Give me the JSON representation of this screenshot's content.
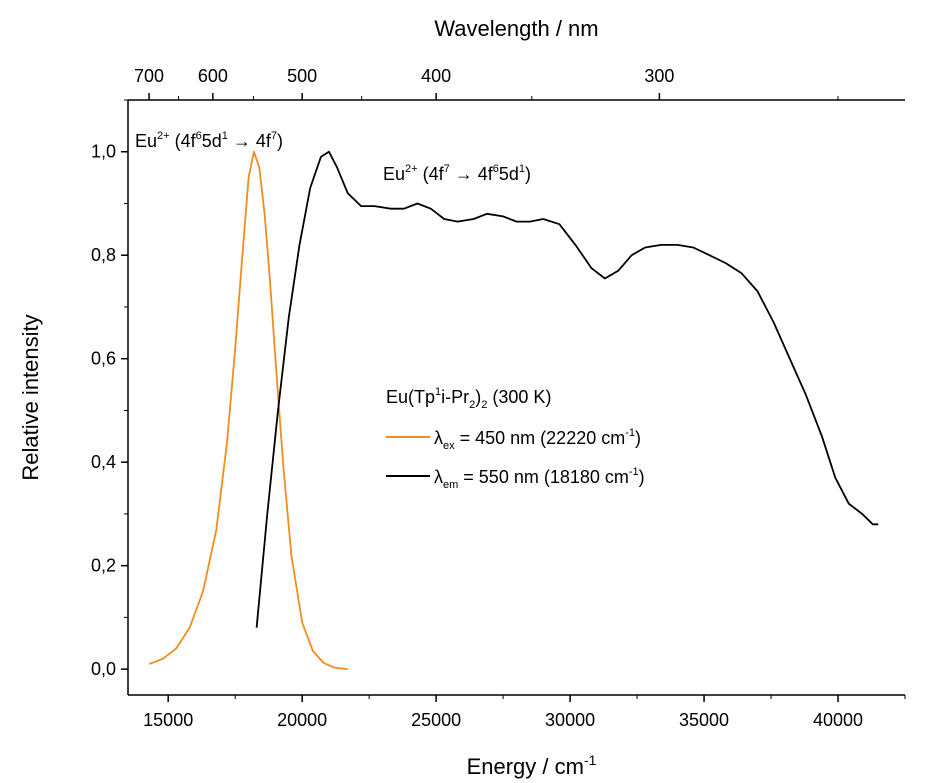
{
  "chart_data": {
    "type": "line",
    "xlabel": "Energy / cm",
    "xlabel_sup": "-1",
    "ylabel": "Relative intensity",
    "top_axis_label": "Wavelength / nm",
    "xlim": [
      13500,
      42500
    ],
    "ylim": [
      -0.05,
      1.1
    ],
    "x_ticks": [
      15000,
      20000,
      25000,
      30000,
      35000,
      40000
    ],
    "x_tick_labels": [
      "15000",
      "20000",
      "25000",
      "30000",
      "35000",
      "40000"
    ],
    "y_ticks": [
      0.0,
      0.2,
      0.4,
      0.6,
      0.8,
      1.0
    ],
    "y_tick_labels": [
      "0,0",
      "0,2",
      "0,4",
      "0,6",
      "0,8",
      "1,0"
    ],
    "top_ticks_nm": [
      700,
      600,
      500,
      400,
      300
    ],
    "top_tick_labels": [
      "700",
      "600",
      "500",
      "400",
      "300"
    ],
    "grid": false,
    "legend_position": "center-right",
    "legend_title": {
      "main": "Eu(Tp",
      "sup": "1",
      "mid": "i-Pr",
      "sub1": "2",
      "end": ")",
      "sub2": "2",
      "tail": " (300 K)"
    },
    "series": [
      {
        "name_parts": {
          "greek": "λ",
          "sub": "ex",
          "text": " = 450 nm (22220 cm",
          "sup": "-1",
          "end": ")"
        },
        "color": "#f28c1e",
        "x": [
          14300,
          14800,
          15300,
          15800,
          16300,
          16800,
          17200,
          17500,
          17800,
          18000,
          18200,
          18400,
          18600,
          18800,
          19000,
          19300,
          19600,
          20000,
          20400,
          20800,
          21200,
          21700
        ],
        "y": [
          0.01,
          0.02,
          0.04,
          0.08,
          0.15,
          0.27,
          0.44,
          0.62,
          0.82,
          0.95,
          1.0,
          0.97,
          0.88,
          0.75,
          0.6,
          0.39,
          0.22,
          0.09,
          0.035,
          0.012,
          0.003,
          0.0
        ]
      },
      {
        "name_parts": {
          "greek": "λ",
          "sub": "em",
          "text": " = 550 nm (18180 cm",
          "sup": "-1",
          "end": ")"
        },
        "color": "#000000",
        "x": [
          18300,
          18700,
          19100,
          19500,
          19900,
          20300,
          20700,
          21000,
          21300,
          21700,
          22200,
          22700,
          23300,
          23800,
          24300,
          24800,
          25300,
          25800,
          26400,
          26900,
          27500,
          28000,
          28500,
          29000,
          29600,
          30200,
          30800,
          31300,
          31800,
          32300,
          32800,
          33400,
          34000,
          34600,
          35200,
          35800,
          36400,
          37000,
          37600,
          38200,
          38800,
          39400,
          39900,
          40400,
          40900,
          41300,
          41500
        ],
        "y": [
          0.08,
          0.3,
          0.5,
          0.68,
          0.82,
          0.93,
          0.99,
          1.0,
          0.97,
          0.92,
          0.895,
          0.895,
          0.89,
          0.89,
          0.9,
          0.89,
          0.87,
          0.865,
          0.87,
          0.88,
          0.875,
          0.865,
          0.865,
          0.87,
          0.86,
          0.82,
          0.775,
          0.755,
          0.77,
          0.8,
          0.815,
          0.82,
          0.82,
          0.815,
          0.8,
          0.785,
          0.765,
          0.73,
          0.67,
          0.6,
          0.53,
          0.45,
          0.37,
          0.32,
          0.3,
          0.28,
          0.28
        ]
      }
    ],
    "annotations": [
      {
        "base": "Eu",
        "sup": "2+",
        "text1": " (4f",
        "sup2": "6",
        "text2": "5d",
        "sup3": "1",
        "arrow": " → ",
        "text3": "4f",
        "sup4": "7",
        "end": ")",
        "at_x": 14300,
        "at_y": 1.02
      },
      {
        "base": "Eu",
        "sup": "2+",
        "text1": " (4f",
        "sup2": "7",
        "arrow": " → ",
        "text2": "4f",
        "sup3": "6",
        "text3": "5d",
        "sup4": "1",
        "end": ")",
        "at_x": 22300,
        "at_y": 0.955
      }
    ]
  }
}
